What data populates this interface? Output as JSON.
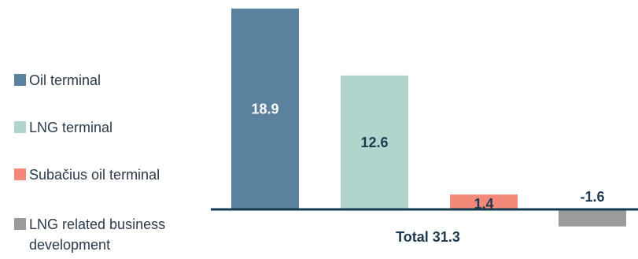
{
  "chart_data": {
    "type": "bar",
    "categories": [
      "Oil terminal",
      "LNG terminal",
      "Subačius oil terminal",
      "LNG related business development"
    ],
    "values": [
      18.9,
      12.6,
      1.4,
      -1.6
    ],
    "value_labels": [
      "18.9",
      "12.6",
      "1.4",
      "-1.6"
    ],
    "colors": [
      "#5a819d",
      "#b1d4cc",
      "#f4897a",
      "#9b9b9b"
    ],
    "label_colors": [
      "#ffffff",
      "#1e3a50",
      "#1e3a50",
      "#1e3a50"
    ],
    "axis_color": "#143c50",
    "total_label": "Total 31.3",
    "legend_position": "left",
    "grid": false,
    "ylim": [
      -2.5,
      19.5
    ]
  },
  "legend": {
    "items": [
      {
        "label_lines": [
          "Oil terminal"
        ],
        "color": "#5a819d"
      },
      {
        "label_lines": [
          "LNG terminal"
        ],
        "color": "#b1d4cc"
      },
      {
        "label_lines": [
          "Subačius oil terminal"
        ],
        "color": "#f4897a"
      },
      {
        "label_lines": [
          "LNG related business",
          "development"
        ],
        "color": "#9b9b9b"
      }
    ]
  }
}
